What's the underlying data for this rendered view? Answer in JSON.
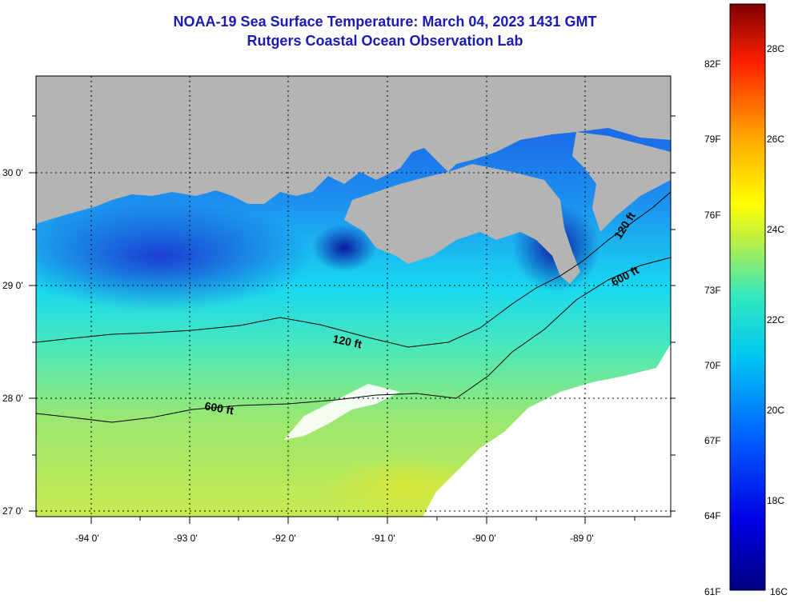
{
  "title": {
    "line1": "NOAA-19 Sea Surface Temperature:  March 04, 2023 1431 GMT",
    "line2": "Rutgers Coastal Ocean Observation Lab"
  },
  "colors": {
    "title": "#1a1ab4",
    "land": "#b4b4b4",
    "cloud": "#ffffff",
    "contour": "#000000"
  },
  "axes": {
    "lon_labels": [
      "-94 0'",
      "-93 0'",
      "-92 0'",
      "-91 0'",
      "-90 0'",
      "-89 0'"
    ],
    "lat_labels": [
      "30 0'",
      "29 0'",
      "28 0'",
      "27 0'"
    ],
    "lon_range": [
      -94.6,
      -88.2
    ],
    "lat_range": [
      26.95,
      30.85
    ],
    "grid": "dotted"
  },
  "contours": {
    "shallow": "120 ft",
    "deep": "600 ft"
  },
  "colorbar": {
    "fahrenheit": [
      "82F",
      "79F",
      "76F",
      "73F",
      "70F",
      "67F",
      "64F",
      "61F"
    ],
    "celsius": [
      "28C",
      "26C",
      "24C",
      "22C",
      "20C",
      "18C",
      "16C"
    ],
    "range_c": [
      16,
      29
    ]
  }
}
